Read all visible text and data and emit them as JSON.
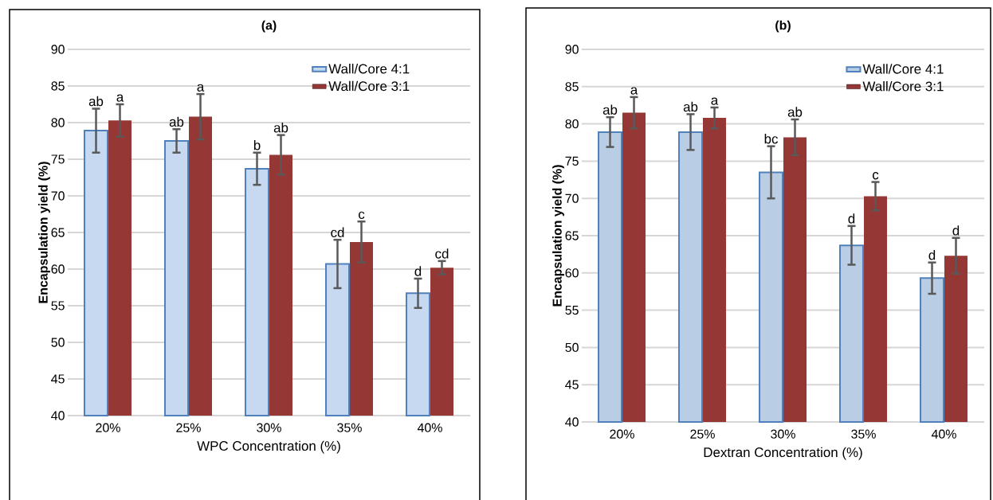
{
  "chart_data": [
    {
      "type": "bar",
      "title": "(a)",
      "xlabel": "WPC Concentration (%)",
      "ylabel": "Encapsulation  yield (%)",
      "categories": [
        "20%",
        "25%",
        "30%",
        "35%",
        "40%"
      ],
      "series": [
        {
          "name": "Wall/Core 4:1",
          "color": "#c6d9f1",
          "values": [
            78.9,
            77.5,
            73.7,
            60.7,
            56.7
          ],
          "errors": [
            3.0,
            1.6,
            2.2,
            3.3,
            2.0
          ],
          "value_labels": [
            "ab",
            "ab",
            "b",
            "cd",
            "d"
          ]
        },
        {
          "name": "Wall/Core 3:1",
          "color": "#953735",
          "values": [
            80.3,
            80.8,
            75.6,
            63.7,
            60.2
          ],
          "errors": [
            2.2,
            3.1,
            2.7,
            2.8,
            0.9
          ],
          "value_labels": [
            "a",
            "a",
            "ab",
            "c",
            "cd"
          ]
        }
      ],
      "ylim": [
        40,
        90
      ],
      "yticks": [
        40,
        45,
        50,
        55,
        60,
        65,
        70,
        75,
        80,
        85,
        90
      ],
      "grid": "y",
      "legend": "top right"
    },
    {
      "type": "bar",
      "title": "(b)",
      "xlabel": "Dextran Concentration (%)",
      "ylabel": "Encapsulation  yield (%)",
      "categories": [
        "20%",
        "25%",
        "30%",
        "35%",
        "40%"
      ],
      "series": [
        {
          "name": "Wall/Core 4:1",
          "color": "#b9cde5",
          "values": [
            78.9,
            78.9,
            73.5,
            63.7,
            59.3
          ],
          "errors": [
            2.0,
            2.4,
            3.5,
            2.6,
            2.1
          ],
          "value_labels": [
            "ab",
            "ab",
            "bc",
            "d",
            "d"
          ]
        },
        {
          "name": "Wall/Core 3:1",
          "color": "#953735",
          "values": [
            81.5,
            80.8,
            78.2,
            70.3,
            62.3
          ],
          "errors": [
            2.1,
            1.4,
            2.4,
            1.9,
            2.4
          ],
          "value_labels": [
            "a",
            "a",
            "ab",
            "c",
            "d"
          ]
        }
      ],
      "ylim": [
        40,
        90
      ],
      "yticks": [
        40,
        45,
        50,
        55,
        60,
        65,
        70,
        75,
        80,
        85,
        90
      ],
      "grid": "y",
      "legend": "top right"
    }
  ]
}
